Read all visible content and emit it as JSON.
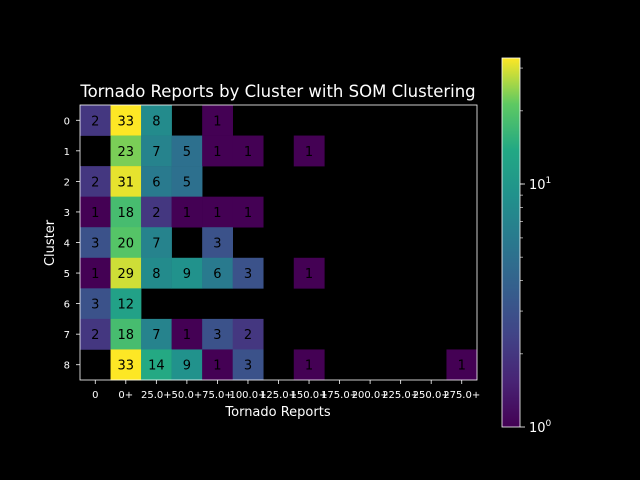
{
  "chart_data": {
    "type": "heatmap",
    "title": "Tornado Reports by Cluster with SOM Clustering",
    "xlabel": "Tornado Reports",
    "ylabel": "Cluster",
    "x_categories": [
      "0",
      "0+",
      "25.0+",
      "50.0+",
      "75.0+",
      "100.0+",
      "125.0+",
      "150.0+",
      "175.0+",
      "200.0+",
      "225.0+",
      "250.0+",
      "275.0+"
    ],
    "y_categories": [
      "0",
      "1",
      "2",
      "3",
      "4",
      "5",
      "6",
      "7",
      "8"
    ],
    "values": [
      [
        2,
        33,
        8,
        null,
        1,
        null,
        null,
        null,
        null,
        null,
        null,
        null,
        null
      ],
      [
        null,
        23,
        7,
        5,
        1,
        1,
        null,
        1,
        null,
        null,
        null,
        null,
        null
      ],
      [
        2,
        31,
        6,
        5,
        null,
        null,
        null,
        null,
        null,
        null,
        null,
        null,
        null
      ],
      [
        1,
        18,
        2,
        1,
        1,
        1,
        null,
        null,
        null,
        null,
        null,
        null,
        null
      ],
      [
        3,
        20,
        7,
        null,
        3,
        null,
        null,
        null,
        null,
        null,
        null,
        null,
        null
      ],
      [
        1,
        29,
        8,
        9,
        6,
        3,
        null,
        1,
        null,
        null,
        null,
        null,
        null
      ],
      [
        3,
        12,
        null,
        null,
        null,
        null,
        null,
        null,
        null,
        null,
        null,
        null,
        null
      ],
      [
        2,
        18,
        7,
        1,
        3,
        2,
        null,
        null,
        null,
        null,
        null,
        null,
        null
      ],
      [
        null,
        33,
        14,
        9,
        1,
        3,
        null,
        1,
        null,
        null,
        null,
        null,
        1
      ]
    ],
    "color_scale": "log",
    "colormap": "viridis",
    "color_range": [
      1,
      33
    ],
    "colorbar": {
      "ticks": [
        {
          "value": 1,
          "label": "10",
          "exp": "0"
        },
        {
          "value": 10,
          "label": "10",
          "exp": "1"
        }
      ]
    },
    "grid": false,
    "background": "#000000",
    "text_color": "#ffffff"
  }
}
